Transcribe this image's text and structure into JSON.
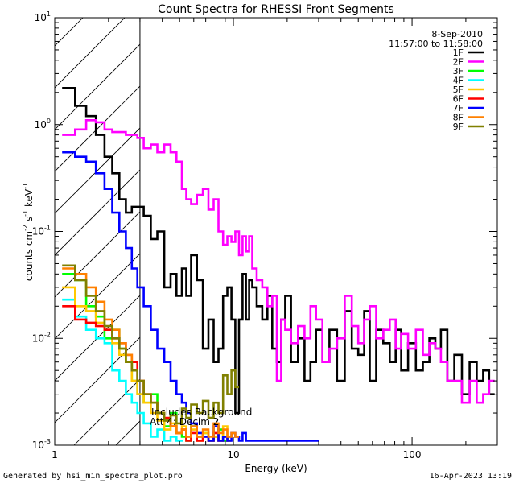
{
  "chart_data": {
    "type": "line",
    "title": "Count Spectra for RHESSI Front Segments",
    "xlabel": "Energy (keV)",
    "ylabel": "counts cm",
    "xscale": "log",
    "yscale": "log",
    "xlim": [
      1,
      300
    ],
    "ylim": [
      0.001,
      10
    ],
    "x_ticks": [
      {
        "value": 1,
        "label": "1"
      },
      {
        "value": 10,
        "label": "10"
      },
      {
        "value": 100,
        "label": "100"
      }
    ],
    "y_ticks": [
      {
        "value": 0.001,
        "base": "10",
        "exp": "-3"
      },
      {
        "value": 0.01,
        "base": "10",
        "exp": "-2"
      },
      {
        "value": 0.1,
        "base": "10",
        "exp": "-1"
      },
      {
        "value": 1,
        "base": "10",
        "exp": "0"
      },
      {
        "value": 10,
        "base": "10",
        "exp": "1"
      }
    ],
    "date": "8-Sep-2010",
    "time_range": "11:57:00 to 11:58:00",
    "legend_position": "top-right",
    "shaded_region": {
      "x": [
        1,
        3
      ]
    },
    "annotations": [
      "Includes Background",
      "Att 4: Decim 2"
    ],
    "footer_left": "Generated by hsi_min_spectra_plot.pro",
    "footer_right": "16-Apr-2023 13:19",
    "series": [
      {
        "name": "1F",
        "color": "#000000",
        "x": [
          1.2,
          1.4,
          1.6,
          1.8,
          2.0,
          2.2,
          2.4,
          2.6,
          2.8,
          3.0,
          3.3,
          3.6,
          3.9,
          4.3,
          4.6,
          5.0,
          5.3,
          5.6,
          6.0,
          6.5,
          7.0,
          7.5,
          8.0,
          8.5,
          9.0,
          9.5,
          10.0,
          10.5,
          11.0,
          11.5,
          12.0,
          12.5,
          13.0,
          14.0,
          15.0,
          16.0,
          17.0,
          18.0,
          19.0,
          20.0,
          22.0,
          24.0,
          26.0,
          28.0,
          30.0,
          33.0,
          36.0,
          40.0,
          44.0,
          48.0,
          52.0,
          56.0,
          60.0,
          66.0,
          72.0,
          78.0,
          84.0,
          90.0,
          100.0,
          110.0,
          120.0,
          130.0,
          140.0,
          150.0,
          165.0,
          180.0,
          200.0,
          220.0,
          240.0,
          260.0,
          280.0
        ],
        "y": [
          2.2,
          1.5,
          1.2,
          0.8,
          0.5,
          0.35,
          0.2,
          0.15,
          0.17,
          0.17,
          0.14,
          0.085,
          0.1,
          0.03,
          0.04,
          0.025,
          0.045,
          0.025,
          0.06,
          0.035,
          0.008,
          0.015,
          0.006,
          0.008,
          0.025,
          0.03,
          0.015,
          0.002,
          0.015,
          0.04,
          0.015,
          0.035,
          0.03,
          0.02,
          0.015,
          0.025,
          0.008,
          0.006,
          0.015,
          0.025,
          0.006,
          0.01,
          0.004,
          0.006,
          0.012,
          0.006,
          0.012,
          0.004,
          0.018,
          0.008,
          0.007,
          0.018,
          0.004,
          0.012,
          0.009,
          0.006,
          0.012,
          0.005,
          0.009,
          0.005,
          0.006,
          0.01,
          0.008,
          0.012,
          0.004,
          0.007,
          0.003,
          0.006,
          0.004,
          0.005,
          0.003
        ]
      },
      {
        "name": "2F",
        "color": "#ff00ff",
        "x": [
          1.2,
          1.4,
          1.6,
          1.8,
          2.0,
          2.2,
          2.4,
          2.6,
          2.8,
          3.0,
          3.3,
          3.6,
          3.9,
          4.3,
          4.6,
          5.0,
          5.3,
          5.6,
          6.0,
          6.5,
          7.0,
          7.5,
          8.0,
          8.5,
          9.0,
          9.5,
          10.0,
          10.5,
          11.0,
          11.5,
          12.0,
          12.5,
          13.0,
          14.0,
          15.0,
          16.0,
          17.0,
          18.0,
          19.0,
          20.0,
          22.0,
          24.0,
          26.0,
          28.0,
          30.0,
          33.0,
          36.0,
          40.0,
          44.0,
          48.0,
          52.0,
          56.0,
          60.0,
          66.0,
          72.0,
          78.0,
          84.0,
          90.0,
          100.0,
          110.0,
          120.0,
          130.0,
          140.0,
          150.0,
          165.0,
          180.0,
          200.0,
          220.0,
          240.0,
          260.0,
          280.0
        ],
        "y": [
          0.8,
          0.9,
          1.1,
          1.05,
          0.9,
          0.85,
          0.85,
          0.8,
          0.8,
          0.75,
          0.6,
          0.65,
          0.55,
          0.65,
          0.55,
          0.45,
          0.25,
          0.2,
          0.18,
          0.22,
          0.25,
          0.16,
          0.2,
          0.1,
          0.075,
          0.09,
          0.08,
          0.1,
          0.06,
          0.09,
          0.065,
          0.09,
          0.045,
          0.035,
          0.03,
          0.02,
          0.025,
          0.004,
          0.015,
          0.012,
          0.009,
          0.013,
          0.01,
          0.02,
          0.015,
          0.006,
          0.008,
          0.01,
          0.025,
          0.013,
          0.009,
          0.015,
          0.02,
          0.01,
          0.012,
          0.015,
          0.008,
          0.011,
          0.008,
          0.012,
          0.007,
          0.009,
          0.008,
          0.006,
          0.004,
          0.004,
          0.0025,
          0.004,
          0.0025,
          0.003,
          0.004
        ]
      },
      {
        "name": "3F",
        "color": "#00ff00",
        "x": [
          1.2,
          1.4,
          1.6,
          1.8,
          2.0,
          2.2,
          2.4,
          2.6,
          2.8,
          3.0,
          3.3,
          3.6,
          3.9,
          4.3,
          4.6,
          5.0,
          5.3,
          5.6,
          6.0,
          6.5,
          7.0,
          7.5,
          8.0,
          8.5,
          9.0,
          9.5
        ],
        "y": [
          0.04,
          0.035,
          0.02,
          0.016,
          0.01,
          0.012,
          0.008,
          0.006,
          0.004,
          0.003,
          0.0025,
          0.003,
          0.002,
          0.0015,
          0.002,
          0.0013,
          0.0012,
          0.0011,
          0.0015,
          0.0012,
          0.0013,
          0.0011,
          0.0012,
          0.0014,
          0.0011,
          0.0012
        ]
      },
      {
        "name": "4F",
        "color": "#00ffff",
        "x": [
          1.2,
          1.4,
          1.6,
          1.8,
          2.0,
          2.2,
          2.4,
          2.6,
          2.8,
          3.0,
          3.3,
          3.6,
          3.9,
          4.3,
          4.6,
          5.0
        ],
        "y": [
          0.023,
          0.016,
          0.012,
          0.01,
          0.009,
          0.005,
          0.004,
          0.003,
          0.0025,
          0.002,
          0.0016,
          0.0012,
          0.0014,
          0.0011,
          0.0012,
          0.0011
        ]
      },
      {
        "name": "5F",
        "color": "#ffc800",
        "x": [
          1.2,
          1.4,
          1.6,
          1.8,
          2.0,
          2.2,
          2.4,
          2.6,
          2.8,
          3.0,
          3.3,
          3.6,
          3.9,
          4.3,
          4.6,
          5.0,
          5.3,
          5.6,
          6.0,
          6.5,
          7.0,
          7.5,
          8.0,
          8.5,
          9.0,
          9.5
        ],
        "y": [
          0.03,
          0.02,
          0.018,
          0.014,
          0.012,
          0.009,
          0.007,
          0.006,
          0.004,
          0.003,
          0.0025,
          0.002,
          0.0017,
          0.0014,
          0.0016,
          0.0013,
          0.0015,
          0.0012,
          0.0014,
          0.0011,
          0.0013,
          0.0011,
          0.0012,
          0.0011,
          0.0015,
          0.0012
        ]
      },
      {
        "name": "6F",
        "color": "#ff0000",
        "x": [
          1.2,
          1.4,
          1.6,
          1.8,
          2.0,
          2.2,
          2.4,
          2.6,
          2.8,
          3.0,
          3.3,
          3.6,
          3.9,
          4.3,
          4.6,
          5.0,
          5.3,
          5.6,
          6.0,
          6.5,
          7.0,
          7.5,
          8.0,
          8.5,
          9.0,
          9.5
        ],
        "y": [
          0.02,
          0.015,
          0.014,
          0.013,
          0.012,
          0.01,
          0.009,
          0.007,
          0.006,
          0.004,
          0.003,
          0.0025,
          0.002,
          0.0018,
          0.0015,
          0.0013,
          0.0014,
          0.0011,
          0.0013,
          0.0011,
          0.0012,
          0.0011,
          0.0013,
          0.0011,
          0.0012,
          0.0011
        ]
      },
      {
        "name": "7F",
        "color": "#0000ff",
        "x": [
          1.2,
          1.4,
          1.6,
          1.8,
          2.0,
          2.2,
          2.4,
          2.6,
          2.8,
          3.0,
          3.3,
          3.6,
          3.9,
          4.3,
          4.6,
          5.0,
          5.3,
          5.6,
          6.0,
          6.5,
          7.0,
          7.5,
          8.0,
          8.5,
          9.0,
          9.5,
          10.0,
          10.5,
          11.0,
          11.5,
          12.0,
          24.0
        ],
        "y": [
          0.55,
          0.5,
          0.45,
          0.35,
          0.25,
          0.15,
          0.1,
          0.07,
          0.045,
          0.03,
          0.02,
          0.012,
          0.008,
          0.006,
          0.004,
          0.003,
          0.0025,
          0.002,
          0.0016,
          0.0013,
          0.0012,
          0.0011,
          0.0015,
          0.0011,
          0.0012,
          0.0011,
          0.0013,
          0.0012,
          0.0011,
          0.0013,
          0.0011,
          0.0011
        ]
      },
      {
        "name": "8F",
        "color": "#ff8000",
        "x": [
          1.2,
          1.4,
          1.6,
          1.8,
          2.0,
          2.2,
          2.4,
          2.6,
          2.8,
          3.0,
          3.3,
          3.6,
          3.9,
          4.3,
          4.6,
          5.0,
          5.3,
          5.6,
          6.0,
          6.5,
          7.0,
          7.5,
          8.0,
          8.5,
          9.0,
          9.5,
          10.0,
          10.5
        ],
        "y": [
          0.045,
          0.04,
          0.03,
          0.022,
          0.015,
          0.012,
          0.009,
          0.007,
          0.005,
          0.004,
          0.003,
          0.0025,
          0.002,
          0.0017,
          0.0015,
          0.0013,
          0.0014,
          0.0012,
          0.0015,
          0.0012,
          0.0014,
          0.0012,
          0.0016,
          0.0013,
          0.0014,
          0.0012,
          0.0013,
          0.0012
        ]
      },
      {
        "name": "9F",
        "color": "#808000",
        "x": [
          1.2,
          1.4,
          1.6,
          1.8,
          2.0,
          2.2,
          2.4,
          2.6,
          2.8,
          3.0,
          3.3,
          3.6,
          3.9,
          4.3,
          4.6,
          5.0,
          5.3,
          5.6,
          6.0,
          6.5,
          7.0,
          7.5,
          8.0,
          8.5,
          9.0,
          9.5,
          10.0,
          10.5
        ],
        "y": [
          0.048,
          0.035,
          0.025,
          0.018,
          0.013,
          0.01,
          0.008,
          0.006,
          0.005,
          0.004,
          0.003,
          0.0025,
          0.002,
          0.0017,
          0.0019,
          0.0016,
          0.0022,
          0.0018,
          0.0024,
          0.002,
          0.0026,
          0.0018,
          0.0025,
          0.002,
          0.0045,
          0.003,
          0.005,
          0.0035
        ]
      }
    ]
  }
}
